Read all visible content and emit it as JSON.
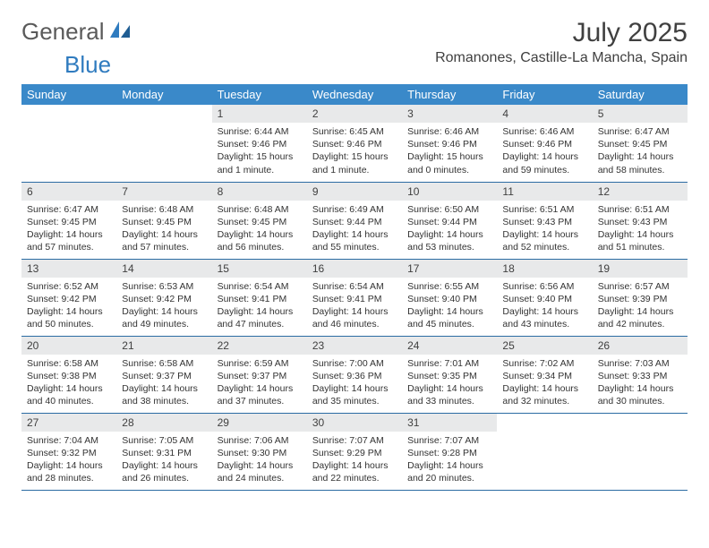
{
  "brand": {
    "general": "General",
    "blue": "Blue"
  },
  "title": "July 2025",
  "location": "Romanones, Castille-La Mancha, Spain",
  "colors": {
    "header_bg": "#3a89c9",
    "header_text": "#ffffff",
    "daynum_bg": "#e8e9ea",
    "border": "#2b6ca3",
    "brand_blue": "#2f7bbf",
    "brand_gray": "#5a5a5a",
    "text": "#333333"
  },
  "weekdays": [
    "Sunday",
    "Monday",
    "Tuesday",
    "Wednesday",
    "Thursday",
    "Friday",
    "Saturday"
  ],
  "weeks": [
    [
      null,
      null,
      {
        "n": "1",
        "sr": "6:44 AM",
        "ss": "9:46 PM",
        "dl": "15 hours and 1 minute."
      },
      {
        "n": "2",
        "sr": "6:45 AM",
        "ss": "9:46 PM",
        "dl": "15 hours and 1 minute."
      },
      {
        "n": "3",
        "sr": "6:46 AM",
        "ss": "9:46 PM",
        "dl": "15 hours and 0 minutes."
      },
      {
        "n": "4",
        "sr": "6:46 AM",
        "ss": "9:46 PM",
        "dl": "14 hours and 59 minutes."
      },
      {
        "n": "5",
        "sr": "6:47 AM",
        "ss": "9:45 PM",
        "dl": "14 hours and 58 minutes."
      }
    ],
    [
      {
        "n": "6",
        "sr": "6:47 AM",
        "ss": "9:45 PM",
        "dl": "14 hours and 57 minutes."
      },
      {
        "n": "7",
        "sr": "6:48 AM",
        "ss": "9:45 PM",
        "dl": "14 hours and 57 minutes."
      },
      {
        "n": "8",
        "sr": "6:48 AM",
        "ss": "9:45 PM",
        "dl": "14 hours and 56 minutes."
      },
      {
        "n": "9",
        "sr": "6:49 AM",
        "ss": "9:44 PM",
        "dl": "14 hours and 55 minutes."
      },
      {
        "n": "10",
        "sr": "6:50 AM",
        "ss": "9:44 PM",
        "dl": "14 hours and 53 minutes."
      },
      {
        "n": "11",
        "sr": "6:51 AM",
        "ss": "9:43 PM",
        "dl": "14 hours and 52 minutes."
      },
      {
        "n": "12",
        "sr": "6:51 AM",
        "ss": "9:43 PM",
        "dl": "14 hours and 51 minutes."
      }
    ],
    [
      {
        "n": "13",
        "sr": "6:52 AM",
        "ss": "9:42 PM",
        "dl": "14 hours and 50 minutes."
      },
      {
        "n": "14",
        "sr": "6:53 AM",
        "ss": "9:42 PM",
        "dl": "14 hours and 49 minutes."
      },
      {
        "n": "15",
        "sr": "6:54 AM",
        "ss": "9:41 PM",
        "dl": "14 hours and 47 minutes."
      },
      {
        "n": "16",
        "sr": "6:54 AM",
        "ss": "9:41 PM",
        "dl": "14 hours and 46 minutes."
      },
      {
        "n": "17",
        "sr": "6:55 AM",
        "ss": "9:40 PM",
        "dl": "14 hours and 45 minutes."
      },
      {
        "n": "18",
        "sr": "6:56 AM",
        "ss": "9:40 PM",
        "dl": "14 hours and 43 minutes."
      },
      {
        "n": "19",
        "sr": "6:57 AM",
        "ss": "9:39 PM",
        "dl": "14 hours and 42 minutes."
      }
    ],
    [
      {
        "n": "20",
        "sr": "6:58 AM",
        "ss": "9:38 PM",
        "dl": "14 hours and 40 minutes."
      },
      {
        "n": "21",
        "sr": "6:58 AM",
        "ss": "9:37 PM",
        "dl": "14 hours and 38 minutes."
      },
      {
        "n": "22",
        "sr": "6:59 AM",
        "ss": "9:37 PM",
        "dl": "14 hours and 37 minutes."
      },
      {
        "n": "23",
        "sr": "7:00 AM",
        "ss": "9:36 PM",
        "dl": "14 hours and 35 minutes."
      },
      {
        "n": "24",
        "sr": "7:01 AM",
        "ss": "9:35 PM",
        "dl": "14 hours and 33 minutes."
      },
      {
        "n": "25",
        "sr": "7:02 AM",
        "ss": "9:34 PM",
        "dl": "14 hours and 32 minutes."
      },
      {
        "n": "26",
        "sr": "7:03 AM",
        "ss": "9:33 PM",
        "dl": "14 hours and 30 minutes."
      }
    ],
    [
      {
        "n": "27",
        "sr": "7:04 AM",
        "ss": "9:32 PM",
        "dl": "14 hours and 28 minutes."
      },
      {
        "n": "28",
        "sr": "7:05 AM",
        "ss": "9:31 PM",
        "dl": "14 hours and 26 minutes."
      },
      {
        "n": "29",
        "sr": "7:06 AM",
        "ss": "9:30 PM",
        "dl": "14 hours and 24 minutes."
      },
      {
        "n": "30",
        "sr": "7:07 AM",
        "ss": "9:29 PM",
        "dl": "14 hours and 22 minutes."
      },
      {
        "n": "31",
        "sr": "7:07 AM",
        "ss": "9:28 PM",
        "dl": "14 hours and 20 minutes."
      },
      null,
      null
    ]
  ],
  "labels": {
    "sunrise": "Sunrise:",
    "sunset": "Sunset:",
    "daylight": "Daylight:"
  }
}
